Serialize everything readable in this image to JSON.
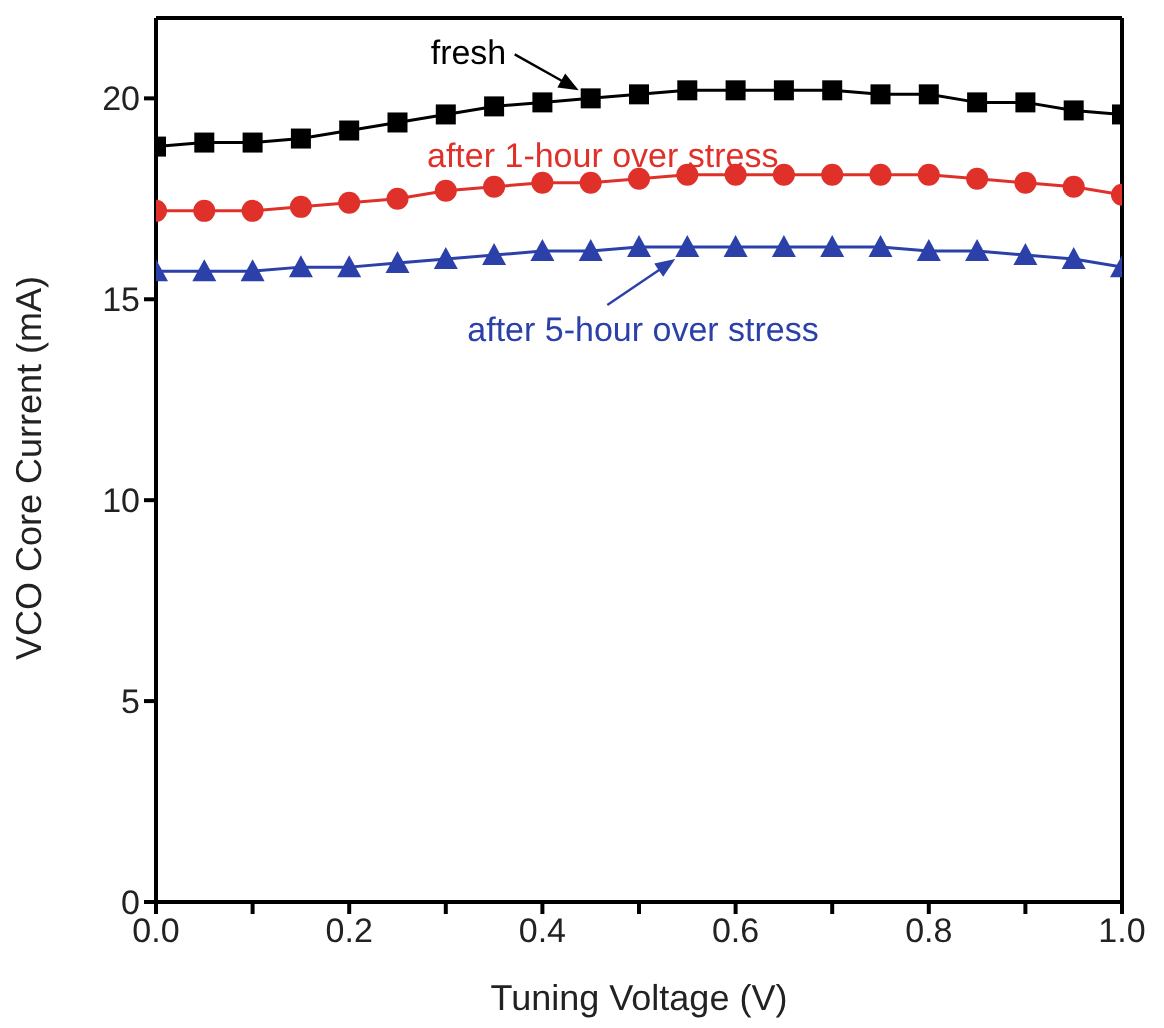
{
  "chart_data": {
    "type": "line",
    "xlabel": "Tuning Voltage (V)",
    "ylabel": "VCO Core Current (mA)",
    "x": [
      0,
      0.05,
      0.1,
      0.15,
      0.2,
      0.25,
      0.3,
      0.35,
      0.4,
      0.45,
      0.5,
      0.55,
      0.6,
      0.65,
      0.7,
      0.75,
      0.8,
      0.85,
      0.9,
      0.95,
      1.0
    ],
    "series": [
      {
        "name": "fresh",
        "color": "#000000",
        "marker": "square",
        "values": [
          18.8,
          18.9,
          18.9,
          19.0,
          19.2,
          19.4,
          19.6,
          19.8,
          19.9,
          20.0,
          20.1,
          20.2,
          20.2,
          20.2,
          20.2,
          20.1,
          20.1,
          19.9,
          19.9,
          19.7,
          19.6
        ]
      },
      {
        "name": "after 1-hour over stress",
        "color": "#e0302a",
        "marker": "circle",
        "values": [
          17.2,
          17.2,
          17.2,
          17.3,
          17.4,
          17.5,
          17.7,
          17.8,
          17.9,
          17.9,
          18.0,
          18.1,
          18.1,
          18.1,
          18.1,
          18.1,
          18.1,
          18.0,
          17.9,
          17.8,
          17.6
        ]
      },
      {
        "name": "after 5-hour over stress",
        "color": "#2b40a8",
        "marker": "triangle",
        "values": [
          15.7,
          15.7,
          15.7,
          15.8,
          15.8,
          15.9,
          16.0,
          16.1,
          16.2,
          16.2,
          16.3,
          16.3,
          16.3,
          16.3,
          16.3,
          16.3,
          16.2,
          16.2,
          16.1,
          16.0,
          15.8
        ]
      }
    ],
    "xlim": [
      0,
      1.0
    ],
    "xticks": [
      {
        "value": 0,
        "label": "0.0"
      },
      {
        "value": 0.1,
        "label": null
      },
      {
        "value": 0.2,
        "label": "0.2"
      },
      {
        "value": 0.3,
        "label": null
      },
      {
        "value": 0.4,
        "label": "0.4"
      },
      {
        "value": 0.5,
        "label": null
      },
      {
        "value": 0.6,
        "label": "0.6"
      },
      {
        "value": 0.7,
        "label": null
      },
      {
        "value": 0.8,
        "label": "0.8"
      },
      {
        "value": 0.9,
        "label": null
      },
      {
        "value": 1.0,
        "label": "1.0"
      }
    ],
    "ylim": [
      0,
      22
    ],
    "yticks": [
      0,
      5,
      10,
      15,
      20
    ],
    "grid": false,
    "line_style": "solid"
  }
}
